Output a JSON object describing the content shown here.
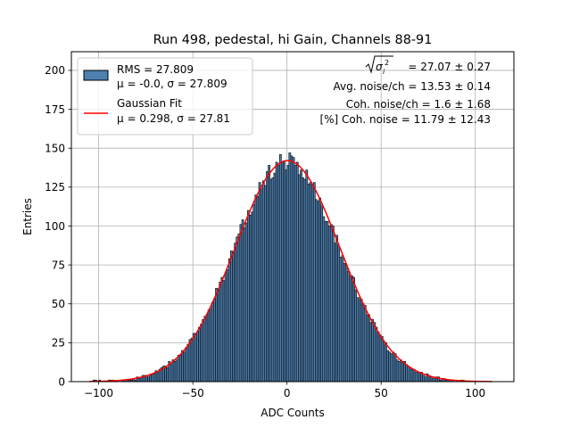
{
  "chart_data": {
    "type": "bar",
    "title": "Run 498, pedestal, hi Gain, Channels 88-91",
    "xlabel": "ADC Counts",
    "ylabel": "Entries",
    "xlim": [
      -114.5,
      120.5
    ],
    "ylim": [
      0,
      212
    ],
    "x_ticks": [
      -100,
      -50,
      0,
      50,
      100
    ],
    "x_tick_labels": [
      "−100",
      "−50",
      "0",
      "50",
      "100"
    ],
    "y_ticks": [
      0,
      25,
      50,
      75,
      100,
      125,
      150,
      175,
      200
    ],
    "y_tick_labels": [
      "0",
      "25",
      "50",
      "75",
      "100",
      "125",
      "150",
      "175",
      "200"
    ],
    "grid": true,
    "histogram": {
      "name": "RMS = 27.809",
      "stats_line": "μ = -0.0, σ = 27.809",
      "bin_start": -105,
      "bin_width": 1,
      "bin_count": 215,
      "rms": 27.809,
      "mean": -0.0,
      "sigma": 27.809,
      "noise_amplitude": 6,
      "fill_color": "#4e80b0",
      "edge_color": "#000000"
    },
    "fit": {
      "name": "Gaussian Fit",
      "stats_line": "μ = 0.298, σ = 27.81",
      "mu": 0.298,
      "sigma": 27.81,
      "amplitude": 142,
      "x_range": [
        -105,
        109
      ],
      "color": "#ff0000"
    },
    "legend_position": "upper-left",
    "annotations_position": "upper-right",
    "annotations": {
      "sigma_symbol": "σ",
      "sigma_subscript": "i",
      "sigma_superscript": "2",
      "line1_value": " = 27.07 ± 0.27",
      "line2": "Avg. noise/ch = 13.53 ± 0.14",
      "line3": "Coh. noise/ch = 1.6 ± 1.68",
      "line4": "[%] Coh. noise = 11.79 ± 12.43"
    }
  }
}
